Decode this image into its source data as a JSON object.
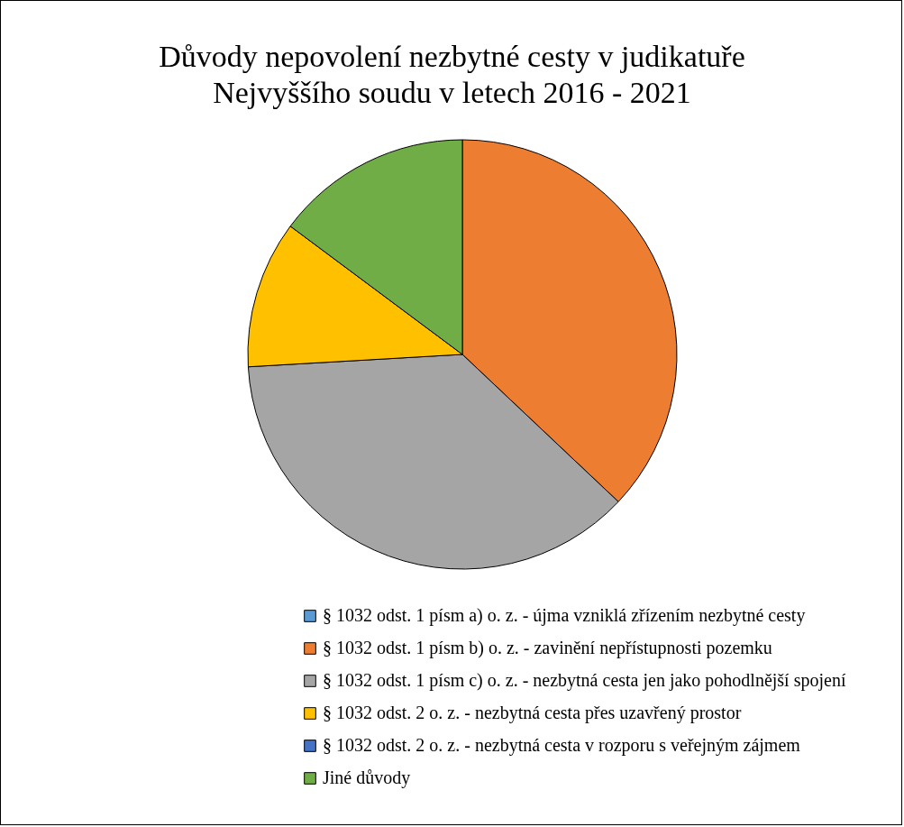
{
  "chart_data": {
    "type": "pie",
    "title": "Důvody nepovolení nezbytné cesty v judikatuře Nejvyššího soudu v letech 2016 - 2021",
    "categories": [
      "§ 1032 odst. 1 písm a) o. z. - újma vzniklá zřízením nezbytné cesty",
      "§ 1032 odst. 1 písm b) o. z. - zavinění nepřístupnosti pozemku",
      "§ 1032 odst. 1 písm c) o. z. - nezbytná cesta jen jako pohodlnější spojení",
      "§ 1032 odst. 2 o. z. - nezbytná cesta přes uzavřený prostor",
      "§ 1032 odst. 2 o. z. - nezbytná cesta v rozporu s veřejným zájmem",
      "Jiné důvody"
    ],
    "values": [
      0,
      37.04,
      37.04,
      11.11,
      0,
      14.81
    ],
    "colors": [
      "#5b9bd5",
      "#ed7d31",
      "#a5a5a5",
      "#ffc000",
      "#4472c4",
      "#70ad47"
    ],
    "legend": "bottom"
  }
}
